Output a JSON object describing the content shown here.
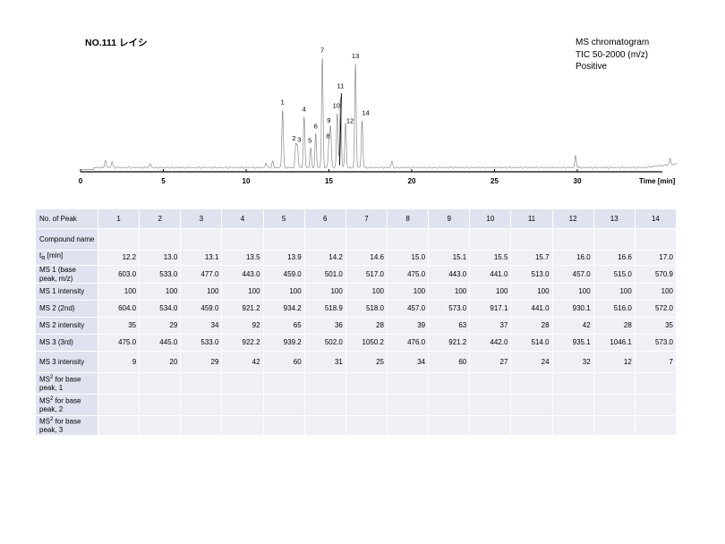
{
  "title": "NO.111 レイシ",
  "info": {
    "line1": "MS chromatogram",
    "line2": "TIC 50-2000 (m/z)",
    "line3": "Positive"
  },
  "chart_data": {
    "type": "line",
    "xlabel": "Time [min]",
    "xlim": [
      0,
      36
    ],
    "x_ticks": [
      "0",
      "5",
      "10",
      "15",
      "20",
      "25",
      "30"
    ],
    "x_tick_values": [
      0,
      5,
      10,
      15,
      20,
      25,
      30
    ],
    "ylim": [
      0,
      100
    ],
    "baseline": 2,
    "peaks": [
      {
        "label": "1",
        "time": 12.2,
        "height": 48
      },
      {
        "label": "2",
        "time": 13.0,
        "height": 18
      },
      {
        "label": "3",
        "time": 13.1,
        "height": 17
      },
      {
        "label": "4",
        "time": 13.5,
        "height": 42
      },
      {
        "label": "5",
        "time": 13.9,
        "height": 16
      },
      {
        "label": "6",
        "time": 14.2,
        "height": 28
      },
      {
        "label": "7",
        "time": 14.6,
        "height": 91
      },
      {
        "label": "8",
        "time": 15.0,
        "height": 20
      },
      {
        "label": "9",
        "time": 15.1,
        "height": 33
      },
      {
        "label": "10",
        "time": 15.5,
        "height": 45
      },
      {
        "label": "11",
        "time": 15.7,
        "height": 59
      },
      {
        "label": "12",
        "time": 16.0,
        "height": 37
      },
      {
        "label": "13",
        "time": 16.6,
        "height": 86
      },
      {
        "label": "14",
        "time": 17.0,
        "height": 39
      }
    ],
    "minor_peaks": [
      {
        "time": 1.5,
        "height": 6
      },
      {
        "time": 1.9,
        "height": 5
      },
      {
        "time": 4.2,
        "height": 3
      },
      {
        "time": 11.2,
        "height": 4
      },
      {
        "time": 11.6,
        "height": 5
      },
      {
        "time": 18.8,
        "height": 5
      },
      {
        "time": 29.9,
        "height": 10
      },
      {
        "time": 35.6,
        "height": 5
      }
    ]
  },
  "table": {
    "header_label": "No. of Peak",
    "peaks": [
      "1",
      "2",
      "3",
      "4",
      "5",
      "6",
      "7",
      "8",
      "9",
      "10",
      "11",
      "12",
      "13",
      "14"
    ],
    "rows": [
      {
        "label": "Compound name",
        "values": [
          "",
          "",
          "",
          "",
          "",
          "",
          "",
          "",
          "",
          "",
          "",
          "",
          "",
          ""
        ]
      },
      {
        "label_main": "t",
        "label_sub": "R",
        "label_rest": " [min]",
        "values": [
          "12.2",
          "13.0",
          "13.1",
          "13.5",
          "13.9",
          "14.2",
          "14.6",
          "15.0",
          "15.1",
          "15.5",
          "15.7",
          "16.0",
          "16.6",
          "17.0"
        ]
      },
      {
        "label": "MS 1 (base peak, m/z)",
        "values": [
          "603.0",
          "533.0",
          "477.0",
          "443.0",
          "459.0",
          "501.0",
          "517.0",
          "475.0",
          "443.0",
          "441.0",
          "513.0",
          "457.0",
          "515.0",
          "570.9"
        ]
      },
      {
        "label": "MS 1 intensity",
        "values": [
          "100",
          "100",
          "100",
          "100",
          "100",
          "100",
          "100",
          "100",
          "100",
          "100",
          "100",
          "100",
          "100",
          "100"
        ]
      },
      {
        "label": "MS 2 (2nd)",
        "values": [
          "604.0",
          "534.0",
          "459.0",
          "921.2",
          "934.2",
          "518.9",
          "518.0",
          "457.0",
          "573.0",
          "917.1",
          "441.0",
          "930.1",
          "516.0",
          "572.0"
        ]
      },
      {
        "label": "MS 2 intensity",
        "values": [
          "35",
          "29",
          "34",
          "92",
          "65",
          "36",
          "28",
          "39",
          "63",
          "37",
          "28",
          "42",
          "28",
          "35"
        ]
      },
      {
        "label": "MS 3 (3rd)",
        "values": [
          "475.0",
          "445.0",
          "533.0",
          "922.2",
          "939.2",
          "502.0",
          "1050.2",
          "476.0",
          "921.2",
          "442.0",
          "514.0",
          "935.1",
          "1046.1",
          "573.0"
        ]
      },
      {
        "label": "MS 3 intensity",
        "values": [
          "9",
          "20",
          "29",
          "42",
          "60",
          "31",
          "25",
          "34",
          "60",
          "27",
          "24",
          "32",
          "12",
          "7"
        ]
      },
      {
        "label_main": "MS",
        "label_sup": "2",
        "label_rest": " for base peak, 1",
        "values": [
          "",
          "",
          "",
          "",
          "",
          "",
          "",
          "",
          "",
          "",
          "",
          "",
          "",
          ""
        ]
      },
      {
        "label_main": "MS",
        "label_sup": "2",
        "label_rest": " for base peak, 2",
        "values": [
          "",
          "",
          "",
          "",
          "",
          "",
          "",
          "",
          "",
          "",
          "",
          "",
          "",
          ""
        ]
      },
      {
        "label_main": "MS",
        "label_sup": "2",
        "label_rest": " for base peak, 3",
        "values": [
          "",
          "",
          "",
          "",
          "",
          "",
          "",
          "",
          "",
          "",
          "",
          "",
          "",
          ""
        ]
      }
    ]
  }
}
